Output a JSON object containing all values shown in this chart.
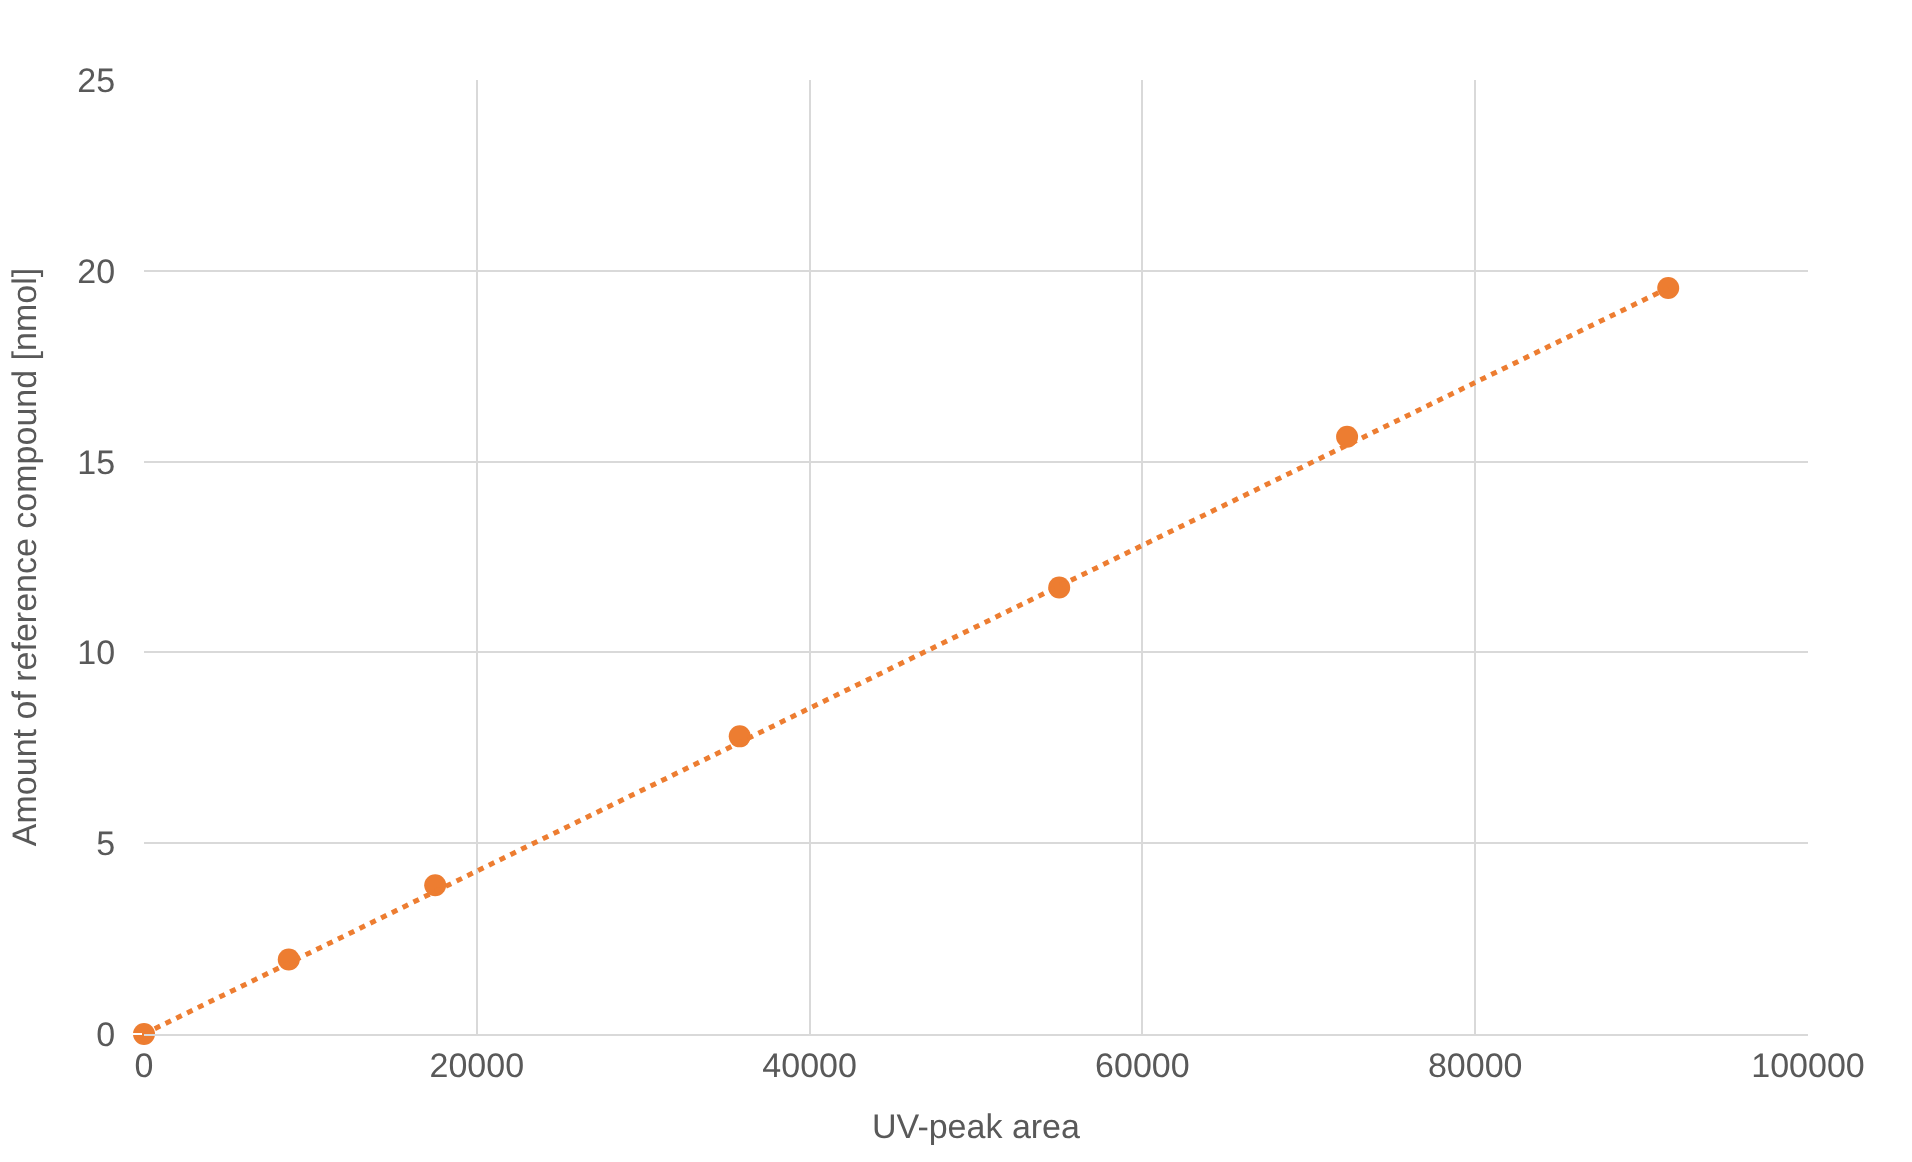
{
  "chart_data": {
    "type": "scatter",
    "xlabel": "UV-peak area",
    "ylabel": "Amount of reference compound [nmol]",
    "series": [
      {
        "color": "#ed7d31",
        "x": [
          0,
          8700,
          17500,
          35800,
          55000,
          72300,
          91600
        ],
        "values": [
          0,
          1.95,
          3.9,
          7.8,
          11.7,
          15.65,
          19.55
        ],
        "marker": "circle"
      },
      {
        "type": "line",
        "color": "#ed7d31",
        "x": [
          0,
          91600
        ],
        "values": [
          0,
          19.55
        ],
        "line_style": "dotted"
      }
    ],
    "xlim": [
      0,
      100000
    ],
    "xticks": [
      0,
      20000,
      40000,
      60000,
      80000,
      100000
    ],
    "ylim": [
      0,
      25
    ],
    "yticks": [
      0,
      5,
      10,
      15,
      20,
      25
    ],
    "grid": true
  }
}
